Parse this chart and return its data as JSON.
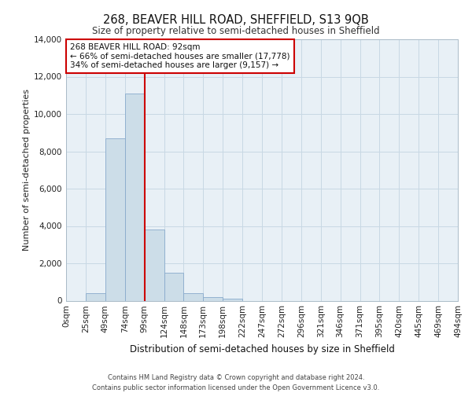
{
  "title_line1": "268, BEAVER HILL ROAD, SHEFFIELD, S13 9QB",
  "title_line2": "Size of property relative to semi-detached houses in Sheffield",
  "xlabel": "Distribution of semi-detached houses by size in Sheffield",
  "ylabel": "Number of semi-detached properties",
  "footnote": "Contains HM Land Registry data © Crown copyright and database right 2024.\nContains public sector information licensed under the Open Government Licence v3.0.",
  "bin_labels": [
    "0sqm",
    "25sqm",
    "49sqm",
    "74sqm",
    "99sqm",
    "124sqm",
    "148sqm",
    "173sqm",
    "198sqm",
    "222sqm",
    "247sqm",
    "272sqm",
    "296sqm",
    "321sqm",
    "346sqm",
    "371sqm",
    "395sqm",
    "420sqm",
    "445sqm",
    "469sqm",
    "494sqm"
  ],
  "bar_heights": [
    0,
    400,
    8700,
    11100,
    3800,
    1500,
    400,
    200,
    100,
    0,
    0,
    0,
    0,
    0,
    0,
    0,
    0,
    0,
    0,
    0
  ],
  "bar_color": "#ccdde8",
  "bar_edge_color": "#88aacc",
  "annotation_title": "268 BEAVER HILL ROAD: 92sqm",
  "annotation_line2": "← 66% of semi-detached houses are smaller (17,778)",
  "annotation_line3": "34% of semi-detached houses are larger (9,157) →",
  "annotation_box_color": "#ffffff",
  "annotation_box_edge": "#cc0000",
  "vline_color": "#cc0000",
  "vline_bin_index": 4,
  "ylim": [
    0,
    14000
  ],
  "yticks": [
    0,
    2000,
    4000,
    6000,
    8000,
    10000,
    12000,
    14000
  ],
  "grid_color": "#c8d8e4",
  "background_color": "#e8f0f6",
  "fig_background": "#ffffff"
}
